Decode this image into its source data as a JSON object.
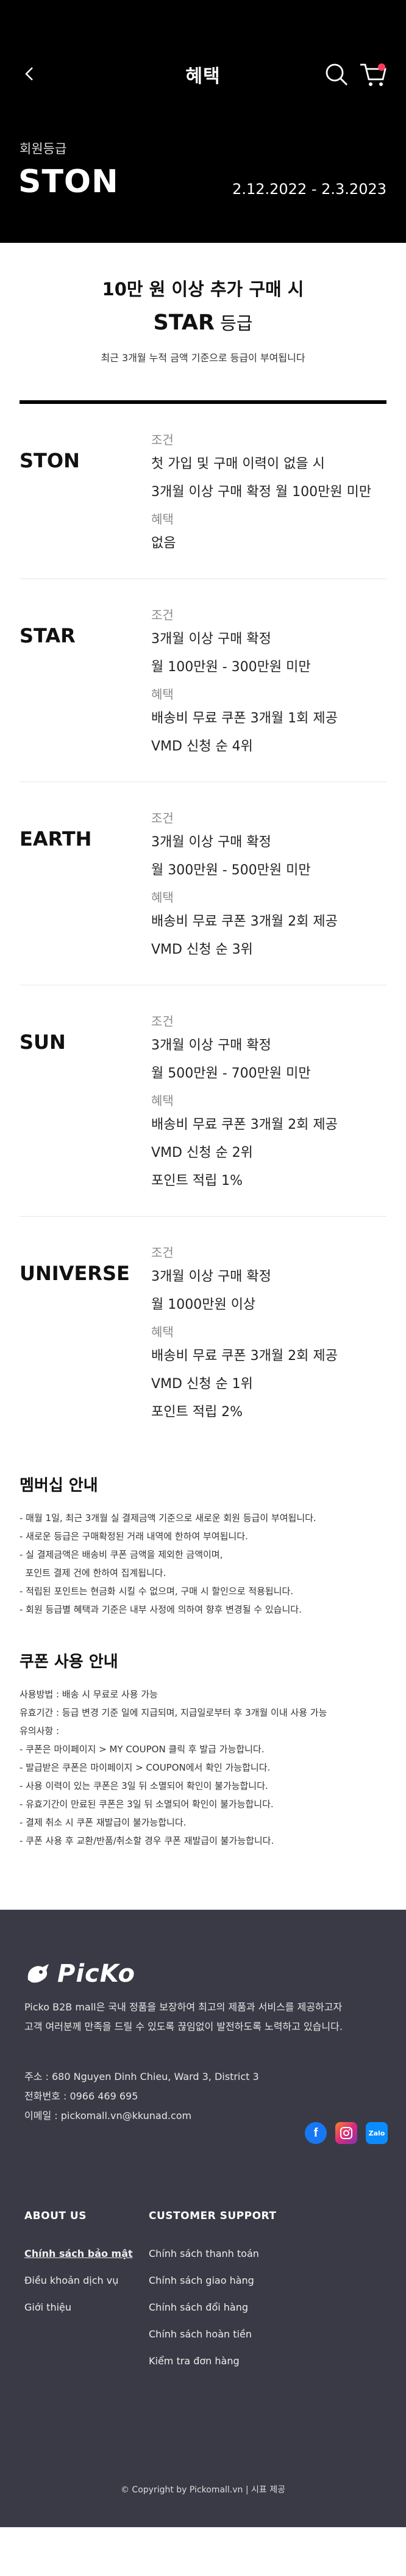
{
  "header": {
    "title": "혜택",
    "grade_caption": "회원등급",
    "grade_name": "STON",
    "grade_period": "2.12.2022 - 2.3.2023"
  },
  "next_grade": {
    "line1": "10만 원 이상 추가 구매 시",
    "grade": "STAR",
    "grade_suffix": " 등급",
    "note": "최근 3개월 누적 금액 기준으로 등급이 부여됩니다"
  },
  "tiers": [
    {
      "name": "STON",
      "condition_label": "조건",
      "conditions": [
        "첫 가입 및 구매 이력이 없을 시",
        "3개월 이상 구매 확정 월 100만원 미만"
      ],
      "benefit_label": "혜택",
      "benefits": [
        "없음"
      ]
    },
    {
      "name": "STAR",
      "condition_label": "조건",
      "conditions": [
        "3개월 이상 구매 확정",
        "월 100만원 - 300만원 미만"
      ],
      "benefit_label": "혜택",
      "benefits": [
        "배송비 무료 쿠폰 3개월 1회 제공",
        "VMD 신청 순 4위"
      ]
    },
    {
      "name": "EARTH",
      "condition_label": "조건",
      "conditions": [
        "3개월 이상 구매 확정",
        "월 300만원 - 500만원 미만"
      ],
      "benefit_label": "혜택",
      "benefits": [
        "배송비 무료 쿠폰 3개월 2회 제공",
        "VMD 신청 순 3위"
      ]
    },
    {
      "name": "SUN",
      "condition_label": "조건",
      "conditions": [
        "3개월 이상 구매 확정",
        "월 500만원 - 700만원 미만"
      ],
      "benefit_label": "혜택",
      "benefits": [
        "배송비 무료 쿠폰 3개월 2회 제공",
        "VMD 신청 순 2위",
        "포인트 적립 1%"
      ]
    },
    {
      "name": "UNIVERSE",
      "condition_label": "조건",
      "conditions": [
        "3개월 이상 구매 확정",
        "월 1000만원 이상"
      ],
      "benefit_label": "혜택",
      "benefits": [
        "배송비 무료 쿠폰 3개월 2회 제공",
        " VMD 신청 순 1위",
        "포인트 적립 2%"
      ]
    }
  ],
  "membership_info": {
    "title": "멤버십 안내",
    "lines": [
      "- 매월 1일, 최근 3개월 실 결제금액 기준으로 새로운 회원 등급이 부여됩니다.",
      "- 새로운 등급은 구매확정된 거래 내역에 한하여 부여됩니다.",
      "- 실 결제금액은 배송비 쿠폰 금액을 제외한 금액이며,",
      "  포인트 결제 건에 한하여 집계됩니다.",
      "- 적립된 포인트는 현금화 시킬 수 없으며, 구매 시 할인으로 적용됩니다.",
      "- 회원 등급별 혜택과 기준은 내부 사정에 의하여 향후 변경될 수 있습니다."
    ]
  },
  "coupon_info": {
    "title": "쿠폰 사용 안내",
    "lines": [
      "사용방법 : 배송 시 무료로 사용 가능",
      "유효기간 : 등급 변경 기준 일에 지급되며, 지급일로부터 후 3개월 이내 사용 가능",
      "유의사항 :",
      "- 쿠폰은 마이페이지 > MY COUPON 클릭 후 발급 가능합니다.",
      "- 발급받은 쿠폰은 마이페이지 > COUPON에서 확인 가능합니다.",
      "- 사용 이력이 있는 쿠폰은 3일 뒤 소멸되어 확인이 불가능합니다.",
      "- 유효기간이 만료된 쿠폰은 3일 뒤 소멸되어 확인이 불가능합니다.",
      "- 결제 취소 시 쿠폰 재발급이 불가능합니다.",
      "- 쿠폰 사용 후 교환/반품/취소할 경우 쿠폰 재발급이 불가능합니다."
    ]
  },
  "footer": {
    "logo": "PicKo",
    "intro": [
      "Picko B2B mall은 국내 정품을 보장하여 최고의 제품과 서비스를 제공하고자",
      "고객 여러분께 만족을 드릴 수 있도록 끊임없이 발전하도록 노력하고 있습니다."
    ],
    "address": "주소 : 680 Nguyen Dinh Chieu, Ward 3, District 3",
    "phone": "전화번호 : 0966 469 695",
    "email": "이메일 : pickomall.vn@kkunad.com",
    "col1_title": "ABOUT US",
    "col1_links": [
      "Chính sách bảo mật",
      "Điều khoản dịch vụ",
      "Giới thiệu"
    ],
    "col2_title": "CUSTOMER SUPPORT",
    "col2_links": [
      "Chính sách thanh toán",
      "Chính sách giao hàng",
      "Chính sách đổi hàng",
      "Chính sách hoàn tiền",
      "Kiểm tra đơn hàng"
    ],
    "copyright": "© Copyright by Pickomall.vn | 시표 제공",
    "socials": {
      "facebook": "f",
      "zalo": "Zalo"
    }
  },
  "colors": {
    "hero_bg": "#000000",
    "footer_bg": "#3a3a46",
    "badge": "#ff3b5c"
  },
  "icons": {
    "back": "chevron-left-icon",
    "search": "search-icon",
    "cart": "cart-icon"
  }
}
